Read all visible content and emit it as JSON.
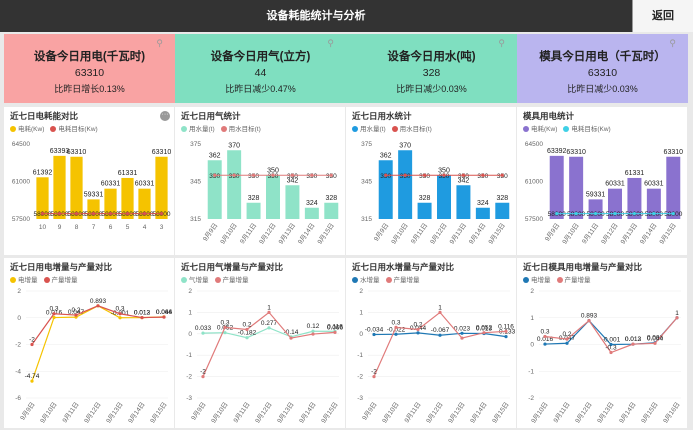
{
  "header": {
    "title": "设备耗能统计与分析",
    "back_label": "返回"
  },
  "kpis": [
    {
      "title": "设备今日用电(千瓦时)",
      "value": "63310",
      "compare": "比昨日增长0.13%",
      "color": "#f9a3a3"
    },
    {
      "title": "设备今日用气(立方)",
      "value": "44",
      "compare": "比昨日减少0.47%",
      "color": "#7fdfc0"
    },
    {
      "title": "设备今日用水(吨)",
      "value": "328",
      "compare": "比昨日减少0.03%",
      "color": "#7fdfc0"
    },
    {
      "title": "模具今日用电（千瓦时）",
      "value": "63310",
      "compare": "比昨日减少0.03%",
      "color": "#bab5ef"
    }
  ],
  "bar_charts": [
    {
      "title": "近七日电耗能对比",
      "legend": [
        "电耗(Kw)",
        "电耗目标(Kw)"
      ],
      "bar_color": "#f5c300",
      "ref_color": "#d9534f",
      "chart_data": {
        "type": "bar",
        "categories": [
          "10",
          "9",
          "8",
          "7",
          "6",
          "5",
          "4",
          "3"
        ],
        "series": [
          {
            "name": "电耗(Kw)",
            "values": [
              61392,
              63393,
              63310,
              59331,
              60331,
              61331,
              60331,
              63310
            ]
          },
          {
            "name": "电耗目标(Kw)",
            "values": [
              58000,
              58000,
              58000,
              58000,
              58000,
              58000,
              58000,
              58000
            ]
          }
        ],
        "ylim": [
          57500,
          64500
        ],
        "yticks": [
          "64500",
          "61000",
          "57500"
        ]
      },
      "value_labels": [
        "61392",
        "63393",
        "63310",
        "59331",
        "60331",
        "61331",
        "60331",
        "63310"
      ],
      "target_labels": [
        "58000",
        "58000",
        "58000",
        "58000",
        "58000",
        "58000",
        "58000",
        "58000"
      ]
    },
    {
      "title": "近七日用气统计",
      "legend": [
        "用水量(t)",
        "用水目标(t)"
      ],
      "bar_color": "#8fe3c8",
      "ref_color": "#e07a7a",
      "chart_data": {
        "type": "bar",
        "categories": [
          "9月9日",
          "9月10日",
          "9月11日",
          "9月12日",
          "9月13日",
          "9月14日",
          "9月15日"
        ],
        "series": [
          {
            "name": "用水量(t)",
            "values": [
              362,
              370,
              328,
              350,
              342,
              324,
              328
            ]
          },
          {
            "name": "用水目标(t)",
            "values": [
              350,
              350,
              350,
              350,
              350,
              350,
              350
            ]
          }
        ],
        "ylim": [
          315,
          375
        ],
        "yticks": [
          "375",
          "345",
          "315"
        ]
      },
      "value_labels": [
        "362",
        "370",
        "328",
        "350",
        "342",
        "324",
        "328"
      ],
      "target_labels": [
        "350",
        "350",
        "350",
        "350",
        "350",
        "350",
        "350"
      ]
    },
    {
      "title": "近七日用水统计",
      "legend": [
        "用水量(t)",
        "用水目标(t)"
      ],
      "bar_color": "#1f9be0",
      "ref_color": "#d9534f",
      "chart_data": {
        "type": "bar",
        "categories": [
          "9月9日",
          "9月10日",
          "9月11日",
          "9月12日",
          "9月13日",
          "9月14日",
          "9月15日"
        ],
        "series": [
          {
            "name": "用水量(t)",
            "values": [
              362,
              370,
              328,
              350,
              342,
              324,
              328
            ]
          },
          {
            "name": "用水目标(t)",
            "values": [
              350,
              350,
              350,
              350,
              350,
              350,
              350
            ]
          }
        ],
        "ylim": [
          315,
          375
        ],
        "yticks": [
          "375",
          "345",
          "315"
        ]
      },
      "value_labels": [
        "362",
        "370",
        "328",
        "350",
        "342",
        "324",
        "328"
      ],
      "target_labels": [
        "350",
        "350",
        "350",
        "350",
        "350",
        "350",
        "350"
      ]
    },
    {
      "title": "模具用电统计",
      "legend": [
        "电耗(Kw)",
        "电耗目标(Kw)"
      ],
      "bar_color": "#8a72cf",
      "ref_color": "#3fd0e6",
      "chart_data": {
        "type": "bar",
        "categories": [
          "9月9日",
          "9月10日",
          "9月11日",
          "9月12日",
          "9月13日",
          "9月14日",
          "9月15日"
        ],
        "series": [
          {
            "name": "电耗(Kw)",
            "values": [
              63392,
              63310,
              59331,
              60331,
              61331,
              60331,
              63310
            ]
          },
          {
            "name": "电耗目标(Kw)",
            "values": [
              58000,
              58000,
              58000,
              58000,
              58000,
              58000,
              58000
            ]
          }
        ],
        "ylim": [
          57500,
          64500
        ],
        "yticks": [
          "64500",
          "61000",
          "57500"
        ]
      },
      "value_labels": [
        "63392",
        "63310",
        "59331",
        "60331",
        "61331",
        "60331",
        "63310"
      ],
      "target_labels": [
        "58000",
        "58000",
        "58000",
        "58000",
        "58000",
        "58000",
        "58000"
      ]
    }
  ],
  "line_charts": [
    {
      "title": "近七日用电增量与产量对比",
      "legend": [
        "电增量",
        "产量增量"
      ],
      "colors": [
        "#f5c300",
        "#d9534f"
      ],
      "chart_data": {
        "type": "line",
        "categories": [
          "9月9日",
          "9月10日",
          "9月11日",
          "9月12日",
          "9月13日",
          "9月14日",
          "9月15日"
        ],
        "series": [
          {
            "name": "电增量",
            "values": [
              -4.74,
              0.016,
              0.047,
              0.893,
              -0.001,
              0.012,
              0.066
            ]
          },
          {
            "name": "产量增量",
            "values": [
              -2,
              0.3,
              0.2,
              0.893,
              0.3,
              0.013,
              0.044
            ]
          }
        ],
        "ylim": [
          -6,
          2
        ],
        "yticks": [
          "2",
          "0",
          "-2",
          "-4",
          "-6"
        ]
      },
      "labels": [
        [
          "-4.74",
          "0.016",
          "0.047",
          "0.893",
          "-0.001",
          "0.012",
          "0.066"
        ],
        [
          "-2",
          "0.3",
          "0.2",
          "",
          "0.3",
          "0.013",
          "0.044"
        ]
      ]
    },
    {
      "title": "近七日用气增量与产量对比",
      "legend": [
        "气增量",
        "产量增量"
      ],
      "colors": [
        "#8fe3c8",
        "#e07a7a"
      ],
      "chart_data": {
        "type": "line",
        "categories": [
          "9月9日",
          "9月10日",
          "9月11日",
          "9月12日",
          "9月13日",
          "9月14日",
          "9月15日"
        ],
        "series": [
          {
            "name": "气增量",
            "values": [
              0.033,
              0.052,
              -0.182,
              0.277,
              -0.14,
              0.12,
              0.116
            ]
          },
          {
            "name": "产量增量",
            "values": [
              -2,
              0.3,
              0.2,
              1,
              -0.2,
              -0.013,
              0.066
            ]
          }
        ],
        "ylim": [
          -3,
          2
        ],
        "yticks": [
          "2",
          "1",
          "0",
          "-1",
          "-2",
          "-3"
        ]
      },
      "labels": [
        [
          "0.033",
          "0.052",
          "-0.182",
          "0.277",
          "-0.14",
          "0.12",
          "0.116"
        ],
        [
          "-2",
          "0.3",
          "0.2",
          "1",
          "",
          "",
          "0.066"
        ]
      ]
    },
    {
      "title": "近七日用水增量与产量对比",
      "legend": [
        "水增量",
        "产量增量"
      ],
      "colors": [
        "#1f78b4",
        "#e07a7a"
      ],
      "chart_data": {
        "type": "line",
        "categories": [
          "9月9日",
          "9月10日",
          "9月11日",
          "9月12日",
          "9月13日",
          "9月14日",
          "9月15日"
        ],
        "series": [
          {
            "name": "水增量",
            "values": [
              -0.034,
              -0.022,
              0.044,
              -0.067,
              0.023,
              0.013,
              -0.133
            ]
          },
          {
            "name": "产量增量",
            "values": [
              -2,
              0.3,
              0.2,
              1,
              -0.2,
              0.052,
              0.116
            ]
          }
        ],
        "ylim": [
          -3,
          2
        ],
        "yticks": [
          "2",
          "1",
          "0",
          "-1",
          "-2",
          "-3"
        ]
      },
      "labels": [
        [
          "-0.034",
          "-0.022",
          "0.044",
          "-0.067",
          "0.023",
          "0.013",
          "-0.133"
        ],
        [
          "-2",
          "0.3",
          "0.2",
          "1",
          "",
          "0.052",
          "0.116"
        ]
      ]
    },
    {
      "title": "近七日模具用电增量与产量对比",
      "legend": [
        "电增量",
        "产量增量"
      ],
      "colors": [
        "#1f78b4",
        "#e07a7a"
      ],
      "chart_data": {
        "type": "line",
        "categories": [
          "9月10日",
          "9月11日",
          "9月12日",
          "9月13日",
          "9月14日",
          "9月15日",
          "9月16日"
        ],
        "series": [
          {
            "name": "电增量",
            "values": [
              0.016,
              0.047,
              0.893,
              -0.001,
              0.012,
              0.066,
              1
            ]
          },
          {
            "name": "产量增量",
            "values": [
              0.3,
              0.2,
              0.893,
              -0.3,
              0.013,
              0.044,
              1
            ]
          }
        ],
        "ylim": [
          -2,
          2
        ],
        "yticks": [
          "2",
          "1",
          "0",
          "-1",
          "-2"
        ]
      },
      "labels": [
        [
          "0.016",
          "0.047",
          "0.893",
          "-0.001",
          "0.012",
          "0.066",
          "1"
        ],
        [
          "0.3",
          "0.2",
          "",
          "-0.3",
          "0.013",
          "0.044",
          ""
        ]
      ]
    }
  ]
}
